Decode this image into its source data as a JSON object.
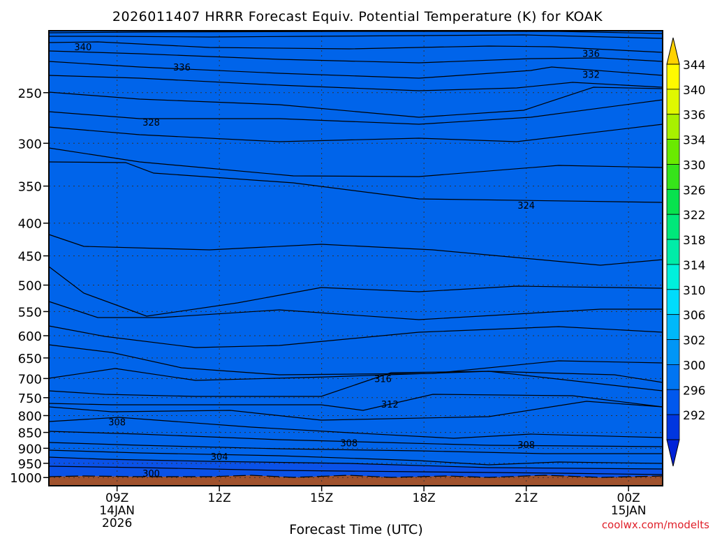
{
  "chart_data": {
    "type": "heatmap",
    "title": "2026011407 HRRR Forecast Equiv. Potential Temperature (K) for KOAK",
    "xlabel": "Forecast Time (UTC)",
    "ylabel": "",
    "x_ticks": [
      {
        "hour": 9,
        "lines": [
          "09Z",
          "14JAN",
          "2026"
        ]
      },
      {
        "hour": 12,
        "lines": [
          "12Z"
        ]
      },
      {
        "hour": 15,
        "lines": [
          "15Z"
        ]
      },
      {
        "hour": 18,
        "lines": [
          "18Z"
        ]
      },
      {
        "hour": 21,
        "lines": [
          "21Z"
        ]
      },
      {
        "hour": 24,
        "lines": [
          "00Z",
          "15JAN"
        ]
      }
    ],
    "xlim": [
      7,
      25
    ],
    "pressure_ticks": [
      250,
      300,
      350,
      400,
      450,
      500,
      550,
      600,
      650,
      700,
      750,
      800,
      850,
      900,
      950,
      1000
    ],
    "ylim": [
      200,
      1030
    ],
    "colorbar": {
      "levels": [
        292,
        296,
        300,
        302,
        306,
        310,
        314,
        318,
        322,
        326,
        330,
        334,
        336,
        340,
        344
      ],
      "colors": [
        "#0036e0",
        "#0058ee",
        "#0075f2",
        "#0096f6",
        "#00b8fa",
        "#00dcfc",
        "#00f0dc",
        "#00eca8",
        "#00e87a",
        "#08e24e",
        "#36e41a",
        "#6aea00",
        "#a8f000",
        "#e0f800",
        "#fffa00"
      ],
      "extend_low_color": "#0022d8",
      "extend_high_color": "#ffd200"
    },
    "ground_color": "#a0522d",
    "contour_labels": [
      {
        "text": "340",
        "hour": 8.0,
        "p": 212
      },
      {
        "text": "336",
        "hour": 10.9,
        "p": 228
      },
      {
        "text": "336",
        "hour": 22.9,
        "p": 217
      },
      {
        "text": "332",
        "hour": 22.9,
        "p": 234
      },
      {
        "text": "328",
        "hour": 10.0,
        "p": 278
      },
      {
        "text": "324",
        "hour": 21.0,
        "p": 375
      },
      {
        "text": "316",
        "hour": 16.8,
        "p": 700
      },
      {
        "text": "312",
        "hour": 17.0,
        "p": 768
      },
      {
        "text": "308",
        "hour": 9.0,
        "p": 818
      },
      {
        "text": "308",
        "hour": 15.8,
        "p": 882
      },
      {
        "text": "308",
        "hour": 21.0,
        "p": 888
      },
      {
        "text": "304",
        "hour": 12.0,
        "p": 927
      },
      {
        "text": "300",
        "hour": 10.0,
        "p": 985
      }
    ],
    "watermark": "coolwx.com/modelts"
  }
}
